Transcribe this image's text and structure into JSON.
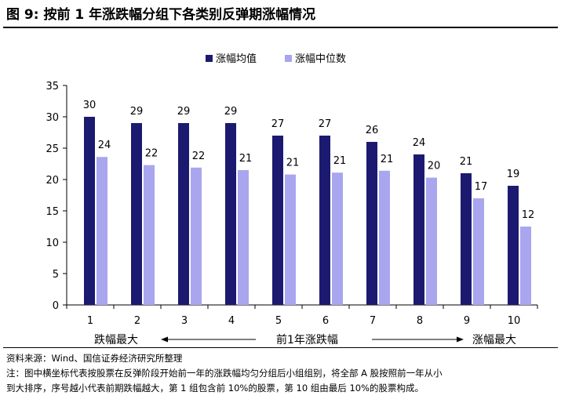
{
  "title": "图 9:  按前 1 年涨跌幅分组下各类别反弹期涨幅情况",
  "chart_data": {
    "type": "bar",
    "categories": [
      "1",
      "2",
      "3",
      "4",
      "5",
      "6",
      "7",
      "8",
      "9",
      "10"
    ],
    "series": [
      {
        "name": "涨幅均值",
        "color": "#1b1a70",
        "values": [
          30,
          29,
          29,
          29,
          27,
          27,
          26,
          24,
          21,
          19
        ],
        "labels": [
          "30",
          "29",
          "29",
          "29",
          "27",
          "27",
          "26",
          "24",
          "21",
          "19"
        ]
      },
      {
        "name": "涨幅中位数",
        "color": "#a9a6ef",
        "values": [
          23.6,
          22.3,
          21.9,
          21.5,
          20.8,
          21.1,
          21.4,
          20.3,
          17.0,
          12.5
        ],
        "labels": [
          "24",
          "22",
          "22",
          "21",
          "21",
          "21",
          "21",
          "20",
          "17",
          "12"
        ]
      }
    ],
    "ylim": [
      0,
      35
    ],
    "yticks": [
      "0",
      "5",
      "10",
      "15",
      "20",
      "25",
      "30",
      "35"
    ],
    "legend": "top-center",
    "grid": false,
    "axis_annotations": {
      "left": "跌幅最大",
      "center": "前1年涨跌幅",
      "right": "涨幅最大"
    }
  },
  "footer": {
    "source": "资料来源：Wind、国信证券经济研究所整理",
    "note_line1": "注：图中横坐标代表按股票在反弹阶段开始前一年的涨跌幅均匀分组后小组组别，将全部 A 股按照前一年从小",
    "note_line2": "到大排序，序号越小代表前期跌幅越大，第 1 组包含前 10%的股票，第 10 组由最后 10%的股票构成。"
  }
}
